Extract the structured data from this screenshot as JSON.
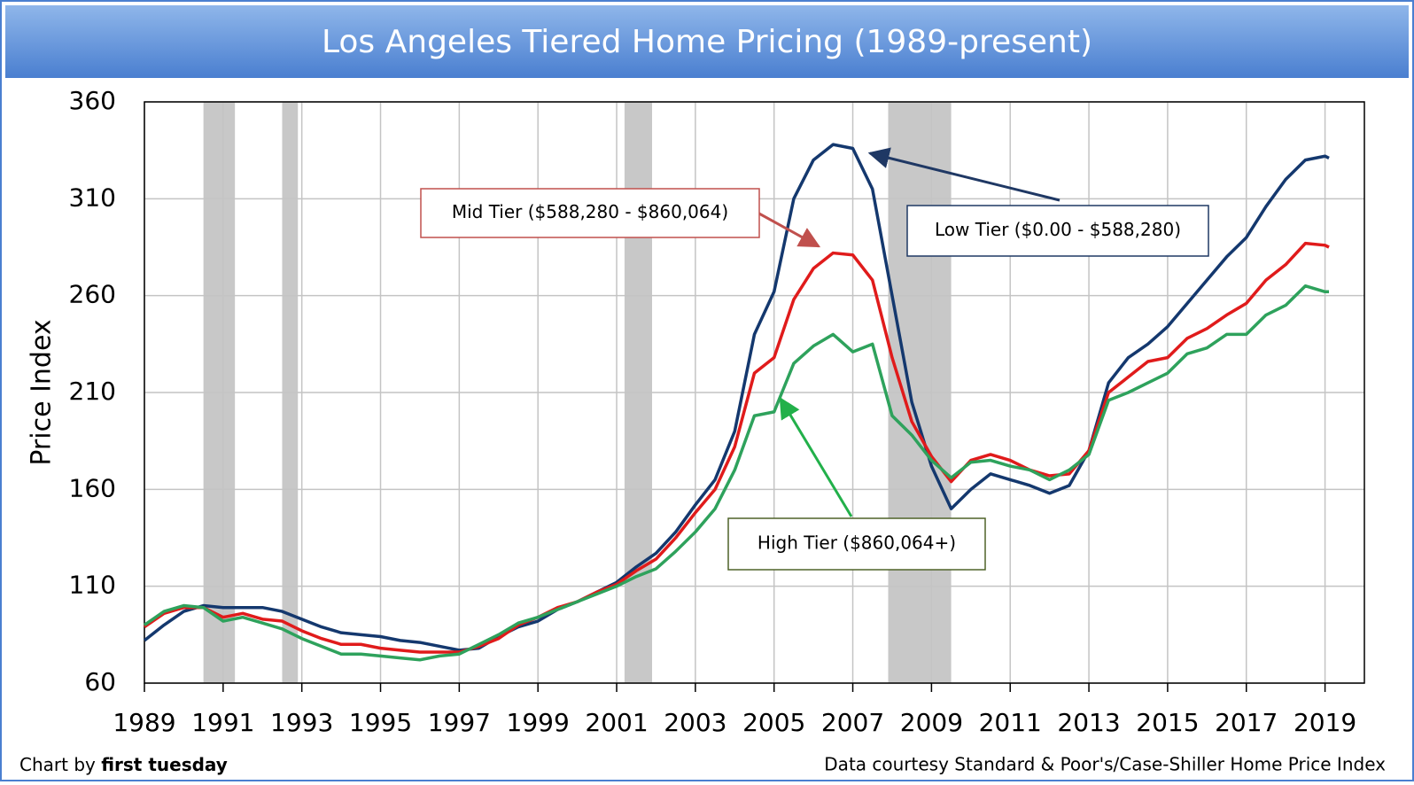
{
  "chart_data": {
    "type": "line",
    "title": "Los Angeles Tiered Home Pricing (1989-present)",
    "ylabel": "Price Index",
    "x": [
      1989,
      1989.5,
      1990,
      1990.5,
      1991,
      1991.5,
      1992,
      1992.5,
      1993,
      1993.5,
      1994,
      1994.5,
      1995,
      1995.5,
      1996,
      1996.5,
      1997,
      1997.5,
      1998,
      1998.5,
      1999,
      1999.5,
      2000,
      2000.5,
      2001,
      2001.5,
      2002,
      2002.5,
      2003,
      2003.5,
      2004,
      2004.5,
      2005,
      2005.5,
      2006,
      2006.5,
      2007,
      2007.5,
      2008,
      2008.5,
      2009,
      2009.5,
      2010,
      2010.5,
      2011,
      2011.5,
      2012,
      2012.5,
      2013,
      2013.5,
      2014,
      2014.5,
      2015,
      2015.5,
      2016,
      2016.5,
      2017,
      2017.5,
      2018,
      2018.5,
      2019,
      2019.1
    ],
    "series": [
      {
        "name": "Low Tier",
        "color": "#14386e",
        "values": [
          82,
          90,
          97,
          100,
          99,
          99,
          99,
          97,
          93,
          89,
          86,
          85,
          84,
          82,
          81,
          79,
          77,
          78,
          84,
          89,
          92,
          98,
          102,
          107,
          112,
          120,
          127,
          138,
          152,
          165,
          190,
          240,
          262,
          310,
          330,
          338,
          336,
          315,
          260,
          205,
          172,
          150,
          160,
          168,
          165,
          162,
          158,
          162,
          180,
          215,
          228,
          235,
          244,
          256,
          268,
          280,
          290,
          306,
          320,
          330,
          332,
          331
        ]
      },
      {
        "name": "Mid Tier",
        "color": "#e01b1b",
        "values": [
          89,
          96,
          99,
          99,
          94,
          96,
          93,
          92,
          87,
          83,
          80,
          80,
          78,
          77,
          76,
          76,
          76,
          79,
          83,
          90,
          94,
          99,
          102,
          107,
          111,
          118,
          124,
          135,
          148,
          160,
          182,
          220,
          228,
          258,
          274,
          282,
          281,
          268,
          228,
          195,
          177,
          164,
          175,
          178,
          175,
          170,
          167,
          168,
          180,
          210,
          218,
          226,
          228,
          238,
          243,
          250,
          256,
          268,
          276,
          287,
          286,
          285
        ]
      },
      {
        "name": "High Tier",
        "color": "#2ea25c",
        "values": [
          90,
          97,
          100,
          99,
          92,
          94,
          91,
          88,
          83,
          79,
          75,
          75,
          74,
          73,
          72,
          74,
          75,
          80,
          85,
          91,
          94,
          98,
          102,
          106,
          110,
          115,
          119,
          128,
          138,
          150,
          170,
          198,
          200,
          225,
          234,
          240,
          231,
          235,
          198,
          188,
          175,
          166,
          174,
          175,
          172,
          170,
          165,
          170,
          178,
          206,
          210,
          215,
          220,
          230,
          233,
          240,
          240,
          250,
          255,
          265,
          262,
          262
        ]
      }
    ],
    "shaded_ranges": [
      [
        1990.5,
        1991.3
      ],
      [
        1992.5,
        1992.9
      ],
      [
        2001.2,
        2001.9
      ],
      [
        2007.9,
        2009.5
      ]
    ],
    "xlim": [
      1989,
      2020
    ],
    "xticks": [
      1989,
      1991,
      1993,
      1995,
      1997,
      1999,
      2001,
      2003,
      2005,
      2007,
      2009,
      2011,
      2013,
      2015,
      2017,
      2019
    ],
    "ylim": [
      60,
      360
    ],
    "yticks": [
      60,
      110,
      160,
      210,
      260,
      310,
      360
    ],
    "grid": true,
    "annotations": [
      {
        "text": "Mid Tier ($588,280 - $860,064)",
        "color": "#c0504d"
      },
      {
        "text": "Low Tier ($0.00 - $588,280)",
        "color": "#1f3864"
      },
      {
        "text": "High Tier ($860,064+)",
        "color": "#4f6228"
      }
    ],
    "credit_prefix": "Chart by",
    "credit_name": "first tuesday",
    "source": "Data courtesy Standard & Poor's/Case-Shiller Home Price Index"
  }
}
